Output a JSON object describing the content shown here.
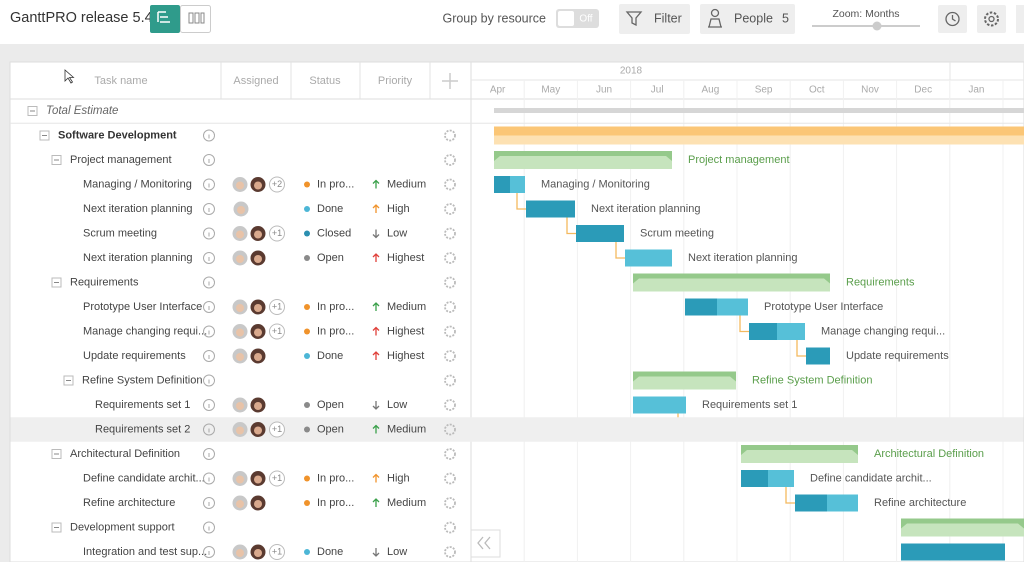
{
  "header": {
    "title": "GanttPRO release 5.4",
    "group_by_label": "Group by resource",
    "group_by_toggle": "Off",
    "filter": "Filter",
    "people": "People",
    "people_count": 5,
    "zoom": "Zoom: Months"
  },
  "columns": [
    "Task name",
    "Assigned",
    "Status",
    "Priority"
  ],
  "timeline": {
    "year": "2018",
    "months": [
      "Apr",
      "May",
      "Jun",
      "Jul",
      "Aug",
      "Sep",
      "Oct",
      "Nov",
      "Dec",
      "Jan"
    ]
  },
  "tasks": {
    "name": "Total Estimate",
    "children": [
      {
        "name": "Software Development",
        "children": [
          {
            "name": "Project management",
            "children": [
              {
                "name": "Managing / Monitoring",
                "assigned_more": "+2",
                "status": "In pro...",
                "status_color": "#f0932b",
                "priority": "Medium",
                "priority_color": "#3aa04a",
                "priority_icon": "up"
              },
              {
                "name": "Next iteration planning",
                "status": "Done",
                "status_color": "#4cb6d6",
                "priority": "High",
                "priority_color": "#f0932b",
                "priority_icon": "up"
              },
              {
                "name": "Scrum meeting",
                "assigned_more": "+1",
                "status": "Closed",
                "status_color": "#2b8fb0",
                "priority": "Low",
                "priority_color": "#777777",
                "priority_icon": "down"
              },
              {
                "name": "Next iteration planning",
                "status": "Open",
                "status_color": "#8a8a8a",
                "priority": "Highest",
                "priority_color": "#e0403a",
                "priority_icon": "up"
              }
            ]
          },
          {
            "name": "Requirements",
            "children": [
              {
                "name": "Prototype User Interface",
                "assigned_more": "+1",
                "status": "In pro...",
                "status_color": "#f0932b",
                "priority": "Medium",
                "priority_color": "#3aa04a",
                "priority_icon": "up"
              },
              {
                "name": "Manage changing requi...",
                "assigned_more": "+1",
                "status": "In pro...",
                "status_color": "#f0932b",
                "priority": "Highest",
                "priority_color": "#e0403a",
                "priority_icon": "up"
              },
              {
                "name": "Update requirements",
                "status": "Done",
                "status_color": "#4cb6d6",
                "priority": "Highest",
                "priority_color": "#e0403a",
                "priority_icon": "up"
              },
              {
                "name": "Refine System Definition",
                "children": [
                  {
                    "name": "Requirements set 1",
                    "status": "Open",
                    "status_color": "#8a8a8a",
                    "priority": "Low",
                    "priority_color": "#777777",
                    "priority_icon": "down"
                  },
                  {
                    "name": "Requirements set 2",
                    "assigned_more": "+1",
                    "status": "Open",
                    "status_color": "#8a8a8a",
                    "priority": "Medium",
                    "priority_color": "#3aa04a",
                    "priority_icon": "up"
                  }
                ]
              }
            ]
          },
          {
            "name": "Architectural Definition",
            "children": [
              {
                "name": "Define candidate archit...",
                "assigned_more": "+1",
                "status": "In pro...",
                "status_color": "#f0932b",
                "priority": "High",
                "priority_color": "#f0932b",
                "priority_icon": "up"
              },
              {
                "name": "Refine architecture",
                "status": "In pro...",
                "status_color": "#f0932b",
                "priority": "Medium",
                "priority_color": "#3aa04a",
                "priority_icon": "up"
              }
            ]
          },
          {
            "name": "Development support",
            "children": [
              {
                "name": "Integration and test sup...",
                "assigned_more": "+1",
                "status": "Done",
                "status_color": "#4cb6d6",
                "priority": "Low",
                "priority_color": "#777777",
                "priority_icon": "down"
              }
            ]
          }
        ]
      }
    ]
  }
}
